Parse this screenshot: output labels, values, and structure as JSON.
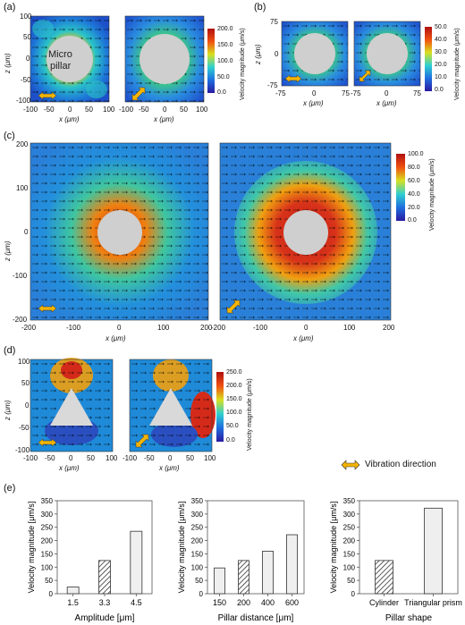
{
  "panels": {
    "a": "(a)",
    "b": "(b)",
    "c": "(c)",
    "d": "(d)",
    "e": "(e)"
  },
  "pillar_label_1": "Micro",
  "pillar_label_2": "pillar",
  "z_label": "z (μm)",
  "x_label": "x (μm)",
  "colorbar": {
    "title": "Velocity magnitude (μm/s)",
    "a_ticks": [
      "200.0",
      "150.0",
      "100.0",
      "50.0",
      "0.0"
    ],
    "b_ticks": [
      "50.0",
      "40.0",
      "30.0",
      "20.0",
      "10.0",
      "0.0"
    ],
    "c_ticks": [
      "100.0",
      "80.0",
      "60.0",
      "40.0",
      "20.0",
      "0.0"
    ],
    "d_ticks": [
      "250.0",
      "200.0",
      "150.0",
      "100.0",
      "50.0",
      "0.0"
    ]
  },
  "ticks": {
    "a_x": [
      "-100",
      "-50",
      "0",
      "50",
      "100"
    ],
    "a_z": [
      "100",
      "50",
      "0",
      "-50",
      "-100"
    ],
    "b_x1": [
      "-75",
      "0",
      "75"
    ],
    "b_x2": [
      "-75",
      "0",
      "75"
    ],
    "b_z": [
      "75",
      "0",
      "-75"
    ],
    "c_x": [
      "-200",
      "-100",
      "0",
      "100",
      "200"
    ],
    "c_z": [
      "200",
      "100",
      "0",
      "-100",
      "-200"
    ],
    "d_x": [
      "-100",
      "-50",
      "0",
      "50",
      "100"
    ],
    "d_z": [
      "100",
      "50",
      "0",
      "-50",
      "-100"
    ]
  },
  "legend_vibration": "Vibration direction",
  "colors": {
    "arrow_fill": "#f5b400",
    "bar_light": "#efefef",
    "bar_edge": "#333333"
  },
  "chart_data": [
    {
      "type": "bar",
      "categories": [
        "1.5",
        "3.3",
        "4.5"
      ],
      "values": [
        25,
        125,
        235
      ],
      "hatched": [
        false,
        true,
        false
      ],
      "xlabel": "Amplitude [μm]",
      "ylabel": "Velocity magnitude [μm/s]",
      "ylim": [
        0,
        350
      ],
      "yticks": [
        "0",
        "50",
        "100",
        "150",
        "200",
        "250",
        "300",
        "350"
      ]
    },
    {
      "type": "bar",
      "categories": [
        "150",
        "200",
        "400",
        "600"
      ],
      "values": [
        97,
        125,
        160,
        222
      ],
      "hatched": [
        false,
        true,
        false,
        false
      ],
      "xlabel": "Pillar distance [μm]",
      "ylabel": "Velocity magnitude [μm/s]",
      "ylim": [
        0,
        350
      ],
      "yticks": [
        "0",
        "50",
        "100",
        "150",
        "200",
        "250",
        "300",
        "350"
      ]
    },
    {
      "type": "bar",
      "categories": [
        "Cylinder",
        "Triangular prism"
      ],
      "values": [
        125,
        322
      ],
      "hatched": [
        true,
        false
      ],
      "xlabel": "Pillar shape",
      "ylabel": "Velocity magnitude [μm/s]",
      "ylim": [
        0,
        350
      ],
      "yticks": [
        "0",
        "50",
        "100",
        "150",
        "200",
        "250",
        "300",
        "350"
      ]
    }
  ]
}
